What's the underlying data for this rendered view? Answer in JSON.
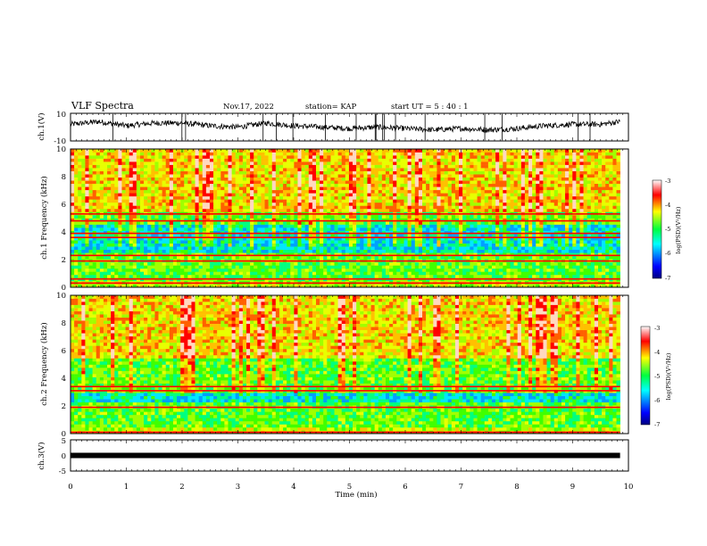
{
  "header": {
    "title": "VLF Spectra",
    "date": "Nov.17, 2022",
    "station": "station= KAP",
    "start": "start  UT =   5 : 40 : 1"
  },
  "chart_data": [
    {
      "type": "line",
      "name": "ch1-waveform",
      "ylabel": "ch.1(V)",
      "ylim": [
        -10,
        10
      ],
      "yticks": [
        "10",
        "-10"
      ],
      "x": [
        0.0,
        0.5,
        1.0,
        1.5,
        2.0,
        2.5,
        3.0,
        3.5,
        4.0,
        4.5,
        5.0,
        5.5,
        6.0,
        6.5,
        7.0,
        7.5,
        8.0,
        8.5,
        9.0,
        9.5,
        9.85
      ],
      "y": [
        2,
        4,
        1,
        3,
        3,
        1,
        0,
        3,
        1,
        0,
        -1,
        0,
        -1,
        -2,
        -1,
        -2,
        -1,
        1,
        2,
        2,
        4
      ]
    },
    {
      "type": "heatmap",
      "name": "ch1-spectrogram",
      "ylabel": "ch.1 Frequency (kHz)",
      "ylim": [
        0,
        10
      ],
      "yticks": [
        "0",
        "2",
        "4",
        "6",
        "8",
        "10"
      ],
      "colorbar": {
        "label": "log(PSD)(V²/Hz)",
        "range": [
          -7,
          -3
        ],
        "ticks": [
          "-3",
          "-4",
          "-5",
          "-6",
          "-7"
        ]
      },
      "strong_lines_khz": [
        0.3,
        0.6,
        1.9,
        2.3,
        3.6,
        3.9,
        4.8,
        5.3
      ],
      "quiet_band_khz": [
        2.6,
        4.6
      ]
    },
    {
      "type": "heatmap",
      "name": "ch2-spectrogram",
      "ylabel": "ch.2 Frequency (kHz)",
      "ylim": [
        0,
        10
      ],
      "yticks": [
        "0",
        "2",
        "4",
        "6",
        "8",
        "10"
      ],
      "colorbar": {
        "label": "log(PSD)(V²/Hz)",
        "range": [
          -7,
          -3
        ],
        "ticks": [
          "-3",
          "-4",
          "-5",
          "-6",
          "-7"
        ]
      },
      "strong_lines_khz": [
        0.1,
        1.9,
        3.1,
        3.4
      ],
      "quiet_band_khz": [
        2.2,
        3.0
      ]
    },
    {
      "type": "line",
      "name": "ch3-waveform",
      "ylabel": "ch.3(V)",
      "ylim": [
        -5,
        5
      ],
      "yticks": [
        "5",
        "0",
        "-5"
      ],
      "x": [
        0,
        9.85
      ],
      "y": [
        0,
        0
      ]
    }
  ],
  "x_axis": {
    "label": "Time  (min)",
    "ticks": [
      "0",
      "1",
      "2",
      "3",
      "4",
      "5",
      "6",
      "7",
      "8",
      "9",
      "10"
    ],
    "range": [
      0,
      10
    ]
  }
}
